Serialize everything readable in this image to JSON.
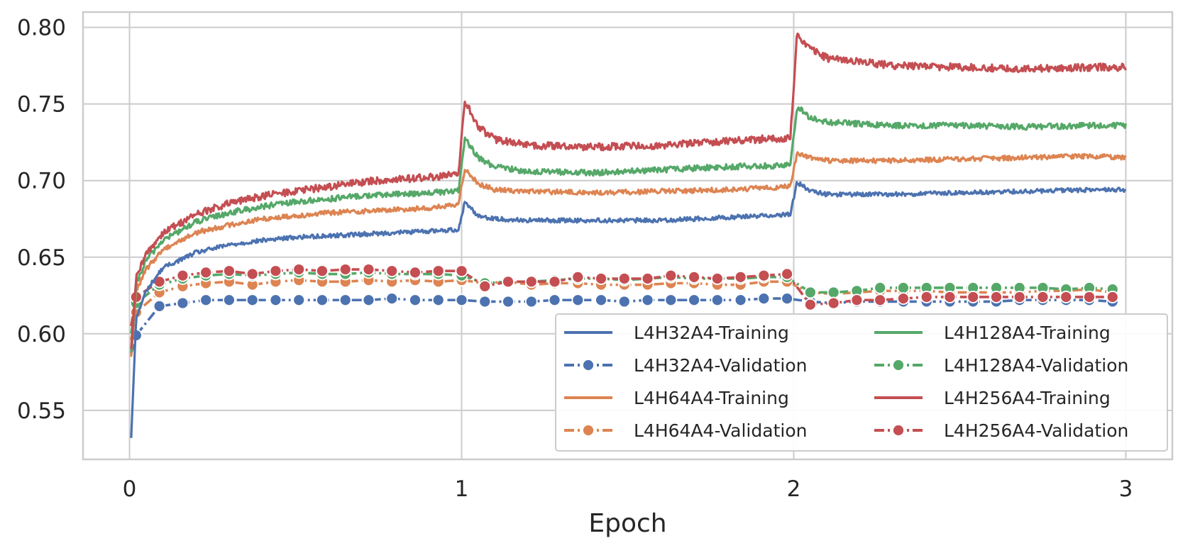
{
  "chart_data": {
    "type": "line",
    "title": "",
    "xlabel": "Epoch",
    "ylabel": "",
    "xlim": [
      -0.14,
      3.14
    ],
    "ylim": [
      0.518,
      0.81
    ],
    "xticks": [
      0,
      1,
      2,
      3
    ],
    "xtick_labels": [
      "0",
      "1",
      "2",
      "3"
    ],
    "yticks": [
      0.55,
      0.6,
      0.65,
      0.7,
      0.75,
      0.8
    ],
    "ytick_labels": [
      "0.55",
      "0.60",
      "0.65",
      "0.70",
      "0.75",
      "0.80"
    ],
    "grid": true,
    "legend_position": "lower-right",
    "legend_columns": 2,
    "series": [
      {
        "name": "L4H32A4-Training",
        "kind": "training",
        "color": "#4c72b0",
        "x": [
          0.005,
          0.02,
          0.05,
          0.1,
          0.2,
          0.3,
          0.4,
          0.5,
          0.6,
          0.7,
          0.8,
          0.9,
          0.99,
          1.01,
          1.05,
          1.1,
          1.2,
          1.4,
          1.6,
          1.8,
          1.99,
          2.01,
          2.05,
          2.1,
          2.3,
          2.5,
          2.7,
          2.9,
          3.0
        ],
        "values": [
          0.532,
          0.61,
          0.628,
          0.643,
          0.653,
          0.658,
          0.661,
          0.663,
          0.664,
          0.665,
          0.666,
          0.667,
          0.668,
          0.686,
          0.677,
          0.675,
          0.674,
          0.674,
          0.674,
          0.676,
          0.678,
          0.699,
          0.693,
          0.691,
          0.691,
          0.692,
          0.693,
          0.694,
          0.694
        ],
        "noise": 0.0014
      },
      {
        "name": "L4H32A4-Validation",
        "kind": "validation",
        "color": "#4c72b0",
        "x": [
          0.005,
          0.02,
          0.09,
          0.16,
          0.23,
          0.3,
          0.37,
          0.44,
          0.51,
          0.58,
          0.65,
          0.72,
          0.79,
          0.86,
          0.93,
          1.0,
          1.07,
          1.14,
          1.21,
          1.28,
          1.35,
          1.42,
          1.49,
          1.56,
          1.63,
          1.7,
          1.77,
          1.84,
          1.91,
          1.98,
          2.05,
          2.12,
          2.19,
          2.26,
          2.33,
          2.4,
          2.47,
          2.54,
          2.61,
          2.68,
          2.75,
          2.82,
          2.89,
          2.96
        ],
        "values": [
          0.587,
          0.599,
          0.618,
          0.62,
          0.622,
          0.622,
          0.622,
          0.622,
          0.622,
          0.622,
          0.622,
          0.622,
          0.623,
          0.622,
          0.622,
          0.622,
          0.621,
          0.621,
          0.621,
          0.622,
          0.622,
          0.622,
          0.621,
          0.622,
          0.622,
          0.622,
          0.622,
          0.622,
          0.623,
          0.623,
          0.621,
          0.62,
          0.621,
          0.621,
          0.621,
          0.621,
          0.621,
          0.621,
          0.621,
          0.622,
          0.622,
          0.622,
          0.622,
          0.621
        ]
      },
      {
        "name": "L4H64A4-Training",
        "kind": "training",
        "color": "#dd8452",
        "x": [
          0.005,
          0.02,
          0.05,
          0.1,
          0.2,
          0.3,
          0.4,
          0.5,
          0.6,
          0.7,
          0.8,
          0.9,
          0.99,
          1.01,
          1.05,
          1.1,
          1.2,
          1.4,
          1.6,
          1.8,
          1.99,
          2.01,
          2.05,
          2.1,
          2.3,
          2.5,
          2.7,
          2.9,
          3.0
        ],
        "values": [
          0.585,
          0.628,
          0.642,
          0.655,
          0.666,
          0.671,
          0.675,
          0.677,
          0.679,
          0.68,
          0.681,
          0.682,
          0.684,
          0.708,
          0.698,
          0.694,
          0.693,
          0.692,
          0.693,
          0.694,
          0.696,
          0.718,
          0.715,
          0.713,
          0.713,
          0.714,
          0.715,
          0.716,
          0.715
        ],
        "noise": 0.0016
      },
      {
        "name": "L4H64A4-Validation",
        "kind": "validation",
        "color": "#dd8452",
        "x": [
          0.005,
          0.02,
          0.09,
          0.16,
          0.23,
          0.3,
          0.37,
          0.44,
          0.51,
          0.58,
          0.65,
          0.72,
          0.79,
          0.86,
          0.93,
          1.0,
          1.07,
          1.14,
          1.21,
          1.28,
          1.35,
          1.42,
          1.49,
          1.56,
          1.63,
          1.7,
          1.77,
          1.84,
          1.91,
          1.98,
          2.05,
          2.12,
          2.19,
          2.26,
          2.33,
          2.4,
          2.47,
          2.54,
          2.61,
          2.68,
          2.75,
          2.82,
          2.89,
          2.96
        ],
        "values": [
          0.596,
          0.614,
          0.627,
          0.631,
          0.633,
          0.634,
          0.632,
          0.634,
          0.635,
          0.634,
          0.634,
          0.635,
          0.634,
          0.635,
          0.634,
          0.635,
          0.633,
          0.634,
          0.632,
          0.633,
          0.633,
          0.632,
          0.632,
          0.632,
          0.633,
          0.633,
          0.632,
          0.632,
          0.634,
          0.634,
          0.627,
          0.626,
          0.627,
          0.628,
          0.628,
          0.628,
          0.627,
          0.627,
          0.627,
          0.627,
          0.628,
          0.628,
          0.629,
          0.627
        ]
      },
      {
        "name": "L4H128A4-Training",
        "kind": "training",
        "color": "#55a868",
        "x": [
          0.005,
          0.02,
          0.05,
          0.1,
          0.2,
          0.3,
          0.4,
          0.5,
          0.6,
          0.7,
          0.8,
          0.9,
          0.99,
          1.01,
          1.05,
          1.1,
          1.2,
          1.4,
          1.6,
          1.8,
          1.99,
          2.01,
          2.05,
          2.1,
          2.3,
          2.5,
          2.7,
          2.9,
          3.0
        ],
        "values": [
          0.588,
          0.632,
          0.648,
          0.661,
          0.673,
          0.679,
          0.683,
          0.686,
          0.688,
          0.69,
          0.691,
          0.692,
          0.693,
          0.727,
          0.715,
          0.709,
          0.706,
          0.705,
          0.707,
          0.709,
          0.71,
          0.748,
          0.741,
          0.738,
          0.736,
          0.736,
          0.735,
          0.736,
          0.736
        ],
        "noise": 0.0019
      },
      {
        "name": "L4H128A4-Validation",
        "kind": "validation",
        "color": "#55a868",
        "x": [
          0.005,
          0.02,
          0.09,
          0.16,
          0.23,
          0.3,
          0.37,
          0.44,
          0.51,
          0.58,
          0.65,
          0.72,
          0.79,
          0.86,
          0.93,
          1.0,
          1.07,
          1.14,
          1.21,
          1.28,
          1.35,
          1.42,
          1.49,
          1.56,
          1.63,
          1.7,
          1.77,
          1.84,
          1.91,
          1.98,
          2.05,
          2.12,
          2.19,
          2.26,
          2.33,
          2.4,
          2.47,
          2.54,
          2.61,
          2.68,
          2.75,
          2.82,
          2.89,
          2.96
        ],
        "values": [
          0.6,
          0.62,
          0.632,
          0.636,
          0.638,
          0.639,
          0.638,
          0.639,
          0.64,
          0.639,
          0.639,
          0.64,
          0.639,
          0.639,
          0.639,
          0.638,
          0.633,
          0.634,
          0.634,
          0.635,
          0.636,
          0.636,
          0.635,
          0.636,
          0.637,
          0.636,
          0.636,
          0.636,
          0.637,
          0.637,
          0.627,
          0.627,
          0.628,
          0.63,
          0.63,
          0.63,
          0.63,
          0.63,
          0.63,
          0.63,
          0.63,
          0.629,
          0.63,
          0.629
        ]
      },
      {
        "name": "L4H256A4-Training",
        "kind": "training",
        "color": "#c44e52",
        "x": [
          0.005,
          0.02,
          0.05,
          0.1,
          0.2,
          0.3,
          0.4,
          0.5,
          0.6,
          0.7,
          0.8,
          0.9,
          0.99,
          1.01,
          1.05,
          1.1,
          1.2,
          1.4,
          1.6,
          1.8,
          1.99,
          2.01,
          2.05,
          2.1,
          2.3,
          2.5,
          2.7,
          2.9,
          3.0
        ],
        "values": [
          0.59,
          0.636,
          0.652,
          0.666,
          0.678,
          0.685,
          0.69,
          0.693,
          0.696,
          0.699,
          0.701,
          0.702,
          0.704,
          0.752,
          0.735,
          0.727,
          0.723,
          0.722,
          0.723,
          0.726,
          0.728,
          0.795,
          0.786,
          0.78,
          0.775,
          0.774,
          0.773,
          0.774,
          0.774
        ],
        "noise": 0.0024
      },
      {
        "name": "L4H256A4-Validation",
        "kind": "validation",
        "color": "#c44e52",
        "x": [
          0.005,
          0.02,
          0.09,
          0.16,
          0.23,
          0.3,
          0.37,
          0.44,
          0.51,
          0.58,
          0.65,
          0.72,
          0.79,
          0.86,
          0.93,
          1.0,
          1.07,
          1.14,
          1.21,
          1.28,
          1.35,
          1.42,
          1.49,
          1.56,
          1.63,
          1.7,
          1.77,
          1.84,
          1.91,
          1.98,
          2.05,
          2.12,
          2.19,
          2.26,
          2.33,
          2.4,
          2.47,
          2.54,
          2.61,
          2.68,
          2.75,
          2.82,
          2.89,
          2.96
        ],
        "values": [
          0.605,
          0.624,
          0.634,
          0.638,
          0.64,
          0.641,
          0.639,
          0.641,
          0.642,
          0.641,
          0.642,
          0.642,
          0.641,
          0.64,
          0.641,
          0.641,
          0.631,
          0.634,
          0.634,
          0.634,
          0.637,
          0.636,
          0.636,
          0.636,
          0.638,
          0.637,
          0.636,
          0.637,
          0.638,
          0.639,
          0.619,
          0.62,
          0.622,
          0.622,
          0.623,
          0.624,
          0.624,
          0.624,
          0.624,
          0.624,
          0.624,
          0.624,
          0.624,
          0.624
        ]
      }
    ]
  }
}
